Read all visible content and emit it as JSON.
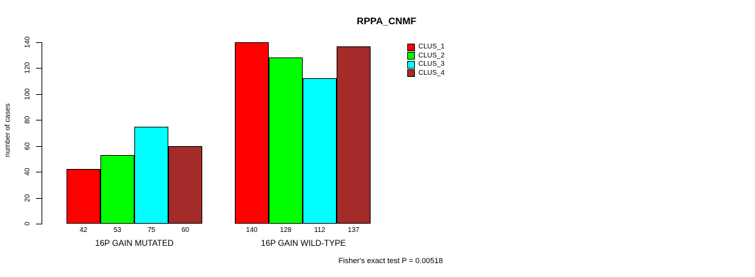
{
  "chart_data": {
    "type": "bar",
    "title": "RPPA_CNMF",
    "xlabel": "",
    "ylabel": "number of cases",
    "ylim": [
      0,
      140
    ],
    "yticks": [
      0,
      20,
      40,
      60,
      80,
      100,
      120,
      140
    ],
    "grid": false,
    "legend_position": "top-right",
    "categories": [
      "16P GAIN MUTATED",
      "16P GAIN WILD-TYPE"
    ],
    "series": [
      {
        "name": "CLUS_1",
        "color": "#FF0000",
        "values": [
          42,
          140
        ]
      },
      {
        "name": "CLUS_2",
        "color": "#00FF00",
        "values": [
          53,
          128
        ]
      },
      {
        "name": "CLUS_3",
        "color": "#00FFFF",
        "values": [
          75,
          112
        ]
      },
      {
        "name": "CLUS_4",
        "color": "#A52A2A",
        "values": [
          60,
          137
        ]
      }
    ],
    "bar_value_labels": [
      42,
      53,
      75,
      60,
      140,
      128,
      112,
      137
    ],
    "annotation": "Fisher's exact test P = 0.00518"
  },
  "colors": {
    "background": "#FFFFFF",
    "axis": "#000000",
    "text": "#000000",
    "bar_border": "#000000"
  }
}
